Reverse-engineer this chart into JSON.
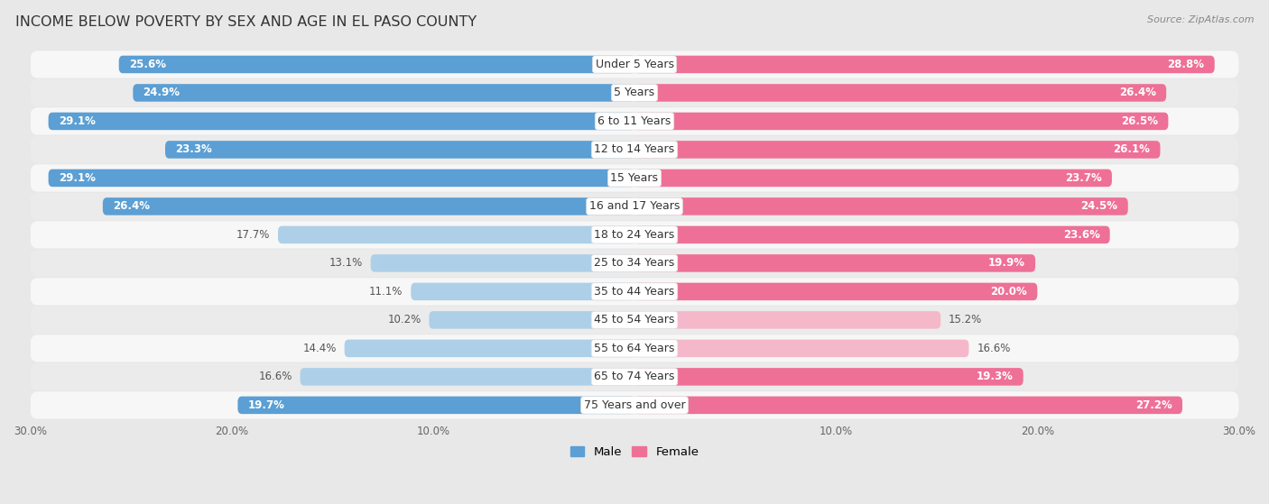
{
  "title": "INCOME BELOW POVERTY BY SEX AND AGE IN EL PASO COUNTY",
  "source": "Source: ZipAtlas.com",
  "categories": [
    "Under 5 Years",
    "5 Years",
    "6 to 11 Years",
    "12 to 14 Years",
    "15 Years",
    "16 and 17 Years",
    "18 to 24 Years",
    "25 to 34 Years",
    "35 to 44 Years",
    "45 to 54 Years",
    "55 to 64 Years",
    "65 to 74 Years",
    "75 Years and over"
  ],
  "male_values": [
    25.6,
    24.9,
    29.1,
    23.3,
    29.1,
    26.4,
    17.7,
    13.1,
    11.1,
    10.2,
    14.4,
    16.6,
    19.7
  ],
  "female_values": [
    28.8,
    26.4,
    26.5,
    26.1,
    23.7,
    24.5,
    23.6,
    19.9,
    20.0,
    15.2,
    16.6,
    19.3,
    27.2
  ],
  "male_color_dark": "#5b9fd4",
  "male_color_light": "#aecfe8",
  "female_color_dark": "#ee7096",
  "female_color_light": "#f5b8cb",
  "male_label": "Male",
  "female_label": "Female",
  "xlim": 30.0,
  "bar_height": 0.62,
  "bg_color": "#e8e8e8",
  "row_color_odd": "#f7f7f7",
  "row_color_even": "#ebebeb",
  "title_fontsize": 11.5,
  "label_fontsize": 8.5,
  "axis_label_fontsize": 8.5,
  "source_fontsize": 8.0,
  "value_threshold": 18.0
}
